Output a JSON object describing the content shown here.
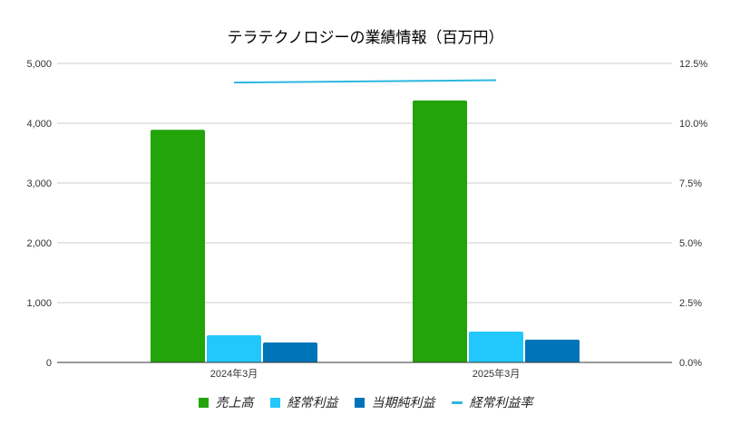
{
  "chart_data": {
    "type": "bar",
    "title": "テラテクノロジーの業績情報（百万円）",
    "categories": [
      "2024年3月",
      "2025年3月"
    ],
    "series": [
      {
        "name": "売上高",
        "type": "bar",
        "axis": "left",
        "color": "#22a40a",
        "values": [
          3890,
          4380
        ]
      },
      {
        "name": "経常利益",
        "type": "bar",
        "axis": "left",
        "color": "#22c7fb",
        "values": [
          455,
          515
        ]
      },
      {
        "name": "当期純利益",
        "type": "bar",
        "axis": "left",
        "color": "#0074b8",
        "values": [
          333,
          380
        ]
      },
      {
        "name": "経常利益率",
        "type": "line",
        "axis": "right",
        "color": "#2bb8e0",
        "values": [
          11.7,
          11.8
        ]
      }
    ],
    "xlabel": "",
    "ylabel": "",
    "ylim": [
      0,
      5000
    ],
    "y2lim": [
      0,
      12.5
    ],
    "yticks": [
      "0",
      "1,000",
      "2,000",
      "3,000",
      "4,000",
      "5,000"
    ],
    "y2ticks": [
      "0.0%",
      "2.5%",
      "5.0%",
      "7.5%",
      "10.0%",
      "12.5%"
    ],
    "grid": true,
    "legend_position": "bottom"
  },
  "legend": [
    {
      "label": "売上高",
      "color": "#22a40a",
      "kind": "box"
    },
    {
      "label": "経常利益",
      "color": "#22c7fb",
      "kind": "box"
    },
    {
      "label": "当期純利益",
      "color": "#0074b8",
      "kind": "box"
    },
    {
      "label": "経常利益率",
      "color": "#2bb8e0",
      "kind": "line"
    }
  ]
}
